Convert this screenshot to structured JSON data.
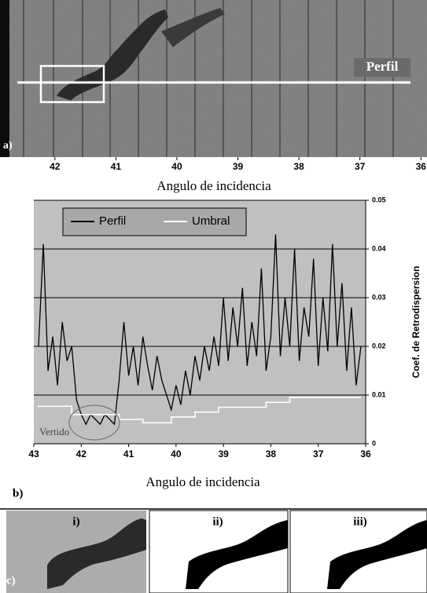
{
  "panel_a": {
    "label": "a)",
    "annotation": "Perfil",
    "xlim": [
      42.9,
      35.9
    ],
    "xticks": [
      42,
      41,
      40,
      39,
      38,
      37,
      36
    ],
    "xlabel": "Angulo de incidencia"
  },
  "chart_data": {
    "type": "line",
    "panel_label": "b)",
    "xlabel": "Angulo de incidencia",
    "ylabel": "Coef. de Retrodispersion",
    "annotation": "Vertido",
    "xlim": [
      43,
      36
    ],
    "xticks": [
      43,
      42,
      41,
      40,
      39,
      38,
      37,
      36
    ],
    "ylim": [
      0,
      0.05
    ],
    "yticks": [
      0,
      0.01,
      0.02,
      0.03,
      0.04,
      0.05
    ],
    "grid": true,
    "legend": "top-left",
    "background": "#c0c0c0",
    "series": [
      {
        "name": "Perfil",
        "color": "#000000",
        "x": [
          42.9,
          42.8,
          42.7,
          42.6,
          42.5,
          42.4,
          42.3,
          42.2,
          42.1,
          42.0,
          41.9,
          41.8,
          41.7,
          41.6,
          41.5,
          41.4,
          41.3,
          41.2,
          41.1,
          41.0,
          40.9,
          40.8,
          40.7,
          40.6,
          40.5,
          40.4,
          40.3,
          40.2,
          40.1,
          40.0,
          39.9,
          39.8,
          39.7,
          39.6,
          39.5,
          39.4,
          39.3,
          39.2,
          39.1,
          39.0,
          38.9,
          38.8,
          38.7,
          38.6,
          38.5,
          38.4,
          38.3,
          38.2,
          38.1,
          38.0,
          37.9,
          37.8,
          37.7,
          37.6,
          37.5,
          37.4,
          37.3,
          37.2,
          37.1,
          37.0,
          36.9,
          36.8,
          36.7,
          36.6,
          36.5,
          36.4,
          36.3,
          36.2,
          36.1
        ],
        "values": [
          0.02,
          0.041,
          0.015,
          0.022,
          0.012,
          0.025,
          0.017,
          0.02,
          0.009,
          0.006,
          0.004,
          0.006,
          0.005,
          0.004,
          0.006,
          0.005,
          0.004,
          0.013,
          0.025,
          0.014,
          0.02,
          0.012,
          0.022,
          0.016,
          0.011,
          0.018,
          0.013,
          0.01,
          0.007,
          0.012,
          0.008,
          0.015,
          0.01,
          0.018,
          0.013,
          0.02,
          0.015,
          0.022,
          0.016,
          0.03,
          0.017,
          0.028,
          0.02,
          0.032,
          0.016,
          0.025,
          0.018,
          0.036,
          0.015,
          0.022,
          0.043,
          0.018,
          0.03,
          0.02,
          0.04,
          0.017,
          0.028,
          0.022,
          0.038,
          0.016,
          0.03,
          0.019,
          0.041,
          0.02,
          0.033,
          0.015,
          0.028,
          0.012,
          0.02
        ]
      },
      {
        "name": "Umbral",
        "color": "#ffffff",
        "x": [
          42.92,
          42.2,
          42.2,
          41.2,
          41.2,
          40.7,
          40.7,
          40.1,
          40.1,
          39.6,
          39.6,
          39.1,
          39.1,
          38.1,
          38.1,
          37.6,
          37.6,
          36.1
        ],
        "values": [
          0.0077,
          0.0077,
          0.006,
          0.006,
          0.005,
          0.005,
          0.0043,
          0.0043,
          0.0055,
          0.0055,
          0.0065,
          0.0065,
          0.0075,
          0.0075,
          0.0085,
          0.0085,
          0.0095,
          0.0095
        ]
      }
    ]
  },
  "panel_c": {
    "label": "c)",
    "panels": [
      "i)",
      "ii)",
      "iii)"
    ]
  }
}
